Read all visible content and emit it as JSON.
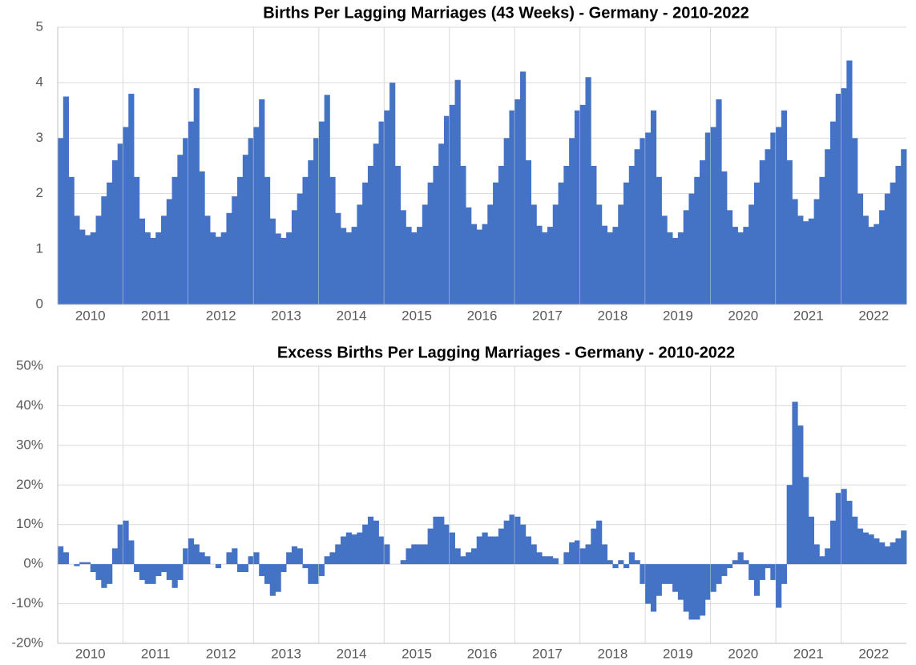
{
  "chart_data": [
    {
      "type": "bar",
      "title": "Births Per Lagging Marriages (43 Weeks) - Germany - 2010-2022",
      "color": "#4472c4",
      "grid": true,
      "ylim": [
        0,
        5
      ],
      "yticks": [
        0,
        1,
        2,
        3,
        4,
        5
      ],
      "categories": [
        "2010",
        "2011",
        "2012",
        "2013",
        "2014",
        "2015",
        "2016",
        "2017",
        "2018",
        "2019",
        "2020",
        "2021",
        "2022"
      ],
      "values": [
        [
          3.0,
          3.75,
          2.3,
          1.6,
          1.35,
          1.25,
          1.3,
          1.6,
          1.95,
          2.2,
          2.6,
          2.9
        ],
        [
          3.2,
          3.8,
          2.3,
          1.55,
          1.3,
          1.2,
          1.3,
          1.6,
          1.9,
          2.3,
          2.7,
          3.0
        ],
        [
          3.3,
          3.9,
          2.4,
          1.6,
          1.3,
          1.22,
          1.3,
          1.65,
          1.95,
          2.3,
          2.7,
          3.0
        ],
        [
          3.2,
          3.7,
          2.3,
          1.55,
          1.28,
          1.2,
          1.3,
          1.7,
          2.0,
          2.3,
          2.6,
          3.0
        ],
        [
          3.3,
          3.78,
          2.3,
          1.65,
          1.38,
          1.3,
          1.4,
          1.8,
          2.2,
          2.5,
          2.9,
          3.3
        ],
        [
          3.5,
          4.0,
          2.5,
          1.7,
          1.4,
          1.3,
          1.4,
          1.8,
          2.2,
          2.5,
          2.9,
          3.4
        ],
        [
          3.6,
          4.05,
          2.5,
          1.75,
          1.45,
          1.35,
          1.45,
          1.8,
          2.2,
          2.5,
          3.0,
          3.5
        ],
        [
          3.7,
          4.2,
          2.6,
          1.8,
          1.42,
          1.3,
          1.4,
          1.8,
          2.2,
          2.5,
          3.0,
          3.5
        ],
        [
          3.6,
          4.1,
          2.5,
          1.8,
          1.42,
          1.3,
          1.4,
          1.8,
          2.2,
          2.5,
          2.8,
          3.0
        ],
        [
          3.1,
          3.5,
          2.3,
          1.6,
          1.3,
          1.2,
          1.3,
          1.7,
          2.0,
          2.3,
          2.6,
          3.1
        ],
        [
          3.2,
          3.7,
          2.4,
          1.7,
          1.4,
          1.3,
          1.4,
          1.8,
          2.2,
          2.6,
          2.8,
          3.1
        ],
        [
          3.2,
          3.5,
          2.6,
          1.9,
          1.6,
          1.5,
          1.55,
          1.9,
          2.3,
          2.8,
          3.3,
          3.8
        ],
        [
          3.9,
          4.4,
          3.0,
          2.0,
          1.6,
          1.4,
          1.45,
          1.7,
          2.0,
          2.2,
          2.5,
          2.8
        ]
      ]
    },
    {
      "type": "bar",
      "title": "Excess Births Per Lagging Marriages - Germany - 2010-2022",
      "color": "#4472c4",
      "grid": true,
      "ylim": [
        -20,
        50
      ],
      "yticks": [
        {
          "value": -20,
          "label": "-20%"
        },
        {
          "value": -10,
          "label": "-10%"
        },
        {
          "value": 0,
          "label": "0%"
        },
        {
          "value": 10,
          "label": "10%"
        },
        {
          "value": 20,
          "label": "20%"
        },
        {
          "value": 30,
          "label": "30%"
        },
        {
          "value": 40,
          "label": "40%"
        },
        {
          "value": 50,
          "label": "50%"
        }
      ],
      "categories": [
        "2010",
        "2011",
        "2012",
        "2013",
        "2014",
        "2015",
        "2016",
        "2017",
        "2018",
        "2019",
        "2020",
        "2021",
        "2022"
      ],
      "values": [
        [
          4.5,
          3,
          0,
          -0.5,
          0.5,
          0.5,
          -2,
          -4,
          -6,
          -5,
          4,
          10
        ],
        [
          11,
          6,
          -2,
          -4,
          -5,
          -5,
          -3,
          -2,
          -4,
          -6,
          -4,
          4
        ],
        [
          6.5,
          5,
          3,
          2,
          0,
          -1,
          0,
          3,
          4,
          -2,
          -2,
          2
        ],
        [
          3,
          -3,
          -5,
          -8,
          -7,
          -2,
          3,
          4.5,
          4,
          -1,
          -5,
          -5
        ],
        [
          -3,
          2,
          3,
          5,
          7,
          8,
          7.5,
          8,
          10,
          12,
          11,
          7
        ],
        [
          5,
          0,
          0,
          1,
          4,
          5,
          5,
          5,
          9,
          12,
          12,
          10
        ],
        [
          8,
          4,
          2,
          3,
          4,
          7,
          8,
          7,
          7,
          9,
          11,
          12.5
        ],
        [
          12,
          10,
          7,
          5,
          3,
          2,
          2,
          1.5,
          0,
          3,
          5.5,
          6
        ],
        [
          4,
          5,
          9,
          11,
          5,
          1,
          -1,
          1,
          -1,
          3,
          1,
          -5
        ],
        [
          -10,
          -12,
          -8,
          -5,
          -5,
          -7,
          -9,
          -12,
          -14,
          -14,
          -13,
          -9
        ],
        [
          -7,
          -5,
          -3,
          -1,
          1,
          3,
          1,
          -4,
          -8,
          -4,
          -1,
          -4
        ],
        [
          -11,
          -5,
          20,
          41,
          35,
          22,
          12,
          5,
          2,
          4,
          11,
          18
        ],
        [
          19,
          16,
          12,
          9,
          8,
          7.5,
          6.5,
          5.5,
          4.5,
          5.5,
          6.5,
          8.5
        ]
      ]
    }
  ]
}
